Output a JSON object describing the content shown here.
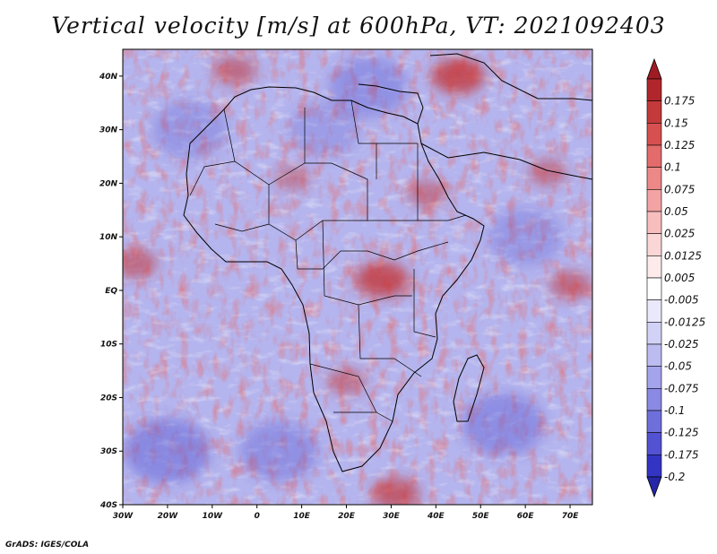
{
  "title": "Vertical velocity [m/s] at 600hPa, VT: 2021092403",
  "footer": "GrADS: IGES/COLA",
  "map": {
    "lon_range": [
      -30,
      75
    ],
    "lat_range": [
      -40,
      45
    ],
    "lon_ticks": [
      {
        "value": -30,
        "label": "30W"
      },
      {
        "value": -20,
        "label": "20W"
      },
      {
        "value": -10,
        "label": "10W"
      },
      {
        "value": 0,
        "label": "0"
      },
      {
        "value": 10,
        "label": "10E"
      },
      {
        "value": 20,
        "label": "20E"
      },
      {
        "value": 30,
        "label": "30E"
      },
      {
        "value": 40,
        "label": "40E"
      },
      {
        "value": 50,
        "label": "50E"
      },
      {
        "value": 60,
        "label": "60E"
      },
      {
        "value": 70,
        "label": "70E"
      }
    ],
    "lat_ticks": [
      {
        "value": 40,
        "label": "40N"
      },
      {
        "value": 30,
        "label": "30N"
      },
      {
        "value": 20,
        "label": "20N"
      },
      {
        "value": 10,
        "label": "10N"
      },
      {
        "value": 0,
        "label": "EQ"
      },
      {
        "value": -10,
        "label": "10S"
      },
      {
        "value": -20,
        "label": "20S"
      },
      {
        "value": -30,
        "label": "30S"
      },
      {
        "value": -40,
        "label": "40S"
      }
    ],
    "hotspots": [
      {
        "lon": 28,
        "lat": 2,
        "strength": 1.0
      },
      {
        "lon": 45,
        "lat": 40,
        "strength": 1.0
      },
      {
        "lon": 31,
        "lat": -38,
        "strength": 0.8
      },
      {
        "lon": -27,
        "lat": 5,
        "strength": 0.6
      },
      {
        "lon": 70,
        "lat": 1,
        "strength": 0.6
      },
      {
        "lon": 65,
        "lat": 22,
        "strength": 0.5
      },
      {
        "lon": 20,
        "lat": -17,
        "strength": 0.5
      },
      {
        "lon": 8,
        "lat": 21,
        "strength": 0.4
      },
      {
        "lon": -5,
        "lat": 41,
        "strength": 0.6
      },
      {
        "lon": 38,
        "lat": 18,
        "strength": 0.5
      }
    ],
    "coldspots": [
      {
        "lon": -20,
        "lat": -30,
        "strength": 0.9
      },
      {
        "lon": 25,
        "lat": 38,
        "strength": 0.7
      },
      {
        "lon": 55,
        "lat": -25,
        "strength": 0.8
      },
      {
        "lon": -15,
        "lat": 30,
        "strength": 0.6
      },
      {
        "lon": 5,
        "lat": -30,
        "strength": 0.7
      },
      {
        "lon": 60,
        "lat": 10,
        "strength": 0.6
      },
      {
        "lon": 15,
        "lat": 30,
        "strength": 0.5
      }
    ]
  },
  "colorbar": {
    "levels": [
      {
        "label": "0.175",
        "color": "#b0262c"
      },
      {
        "label": "0.15",
        "color": "#c43a3a"
      },
      {
        "label": "0.125",
        "color": "#d65050"
      },
      {
        "label": "0.1",
        "color": "#e36b6b"
      },
      {
        "label": "0.075",
        "color": "#ec8888"
      },
      {
        "label": "0.05",
        "color": "#f3a3a3"
      },
      {
        "label": "0.025",
        "color": "#f8bebe"
      },
      {
        "label": "0.0125",
        "color": "#fbd6d6"
      },
      {
        "label": "0.005",
        "color": "#fdebeb"
      },
      {
        "label": "-0.005",
        "color": "#ffffff"
      },
      {
        "label": "-0.0125",
        "color": "#e9e9fb"
      },
      {
        "label": "-0.025",
        "color": "#d2d2f6"
      },
      {
        "label": "-0.05",
        "color": "#bcbcf1"
      },
      {
        "label": "-0.075",
        "color": "#a4a4ec"
      },
      {
        "label": "-0.1",
        "color": "#8a8ae4"
      },
      {
        "label": "-0.125",
        "color": "#6f6fdc"
      },
      {
        "label": "-0.175",
        "color": "#5252d2"
      },
      {
        "label": "-0.2",
        "color": "#3434c4"
      }
    ],
    "top_color": "#a01c24",
    "bottom_color": "#2626a8"
  }
}
